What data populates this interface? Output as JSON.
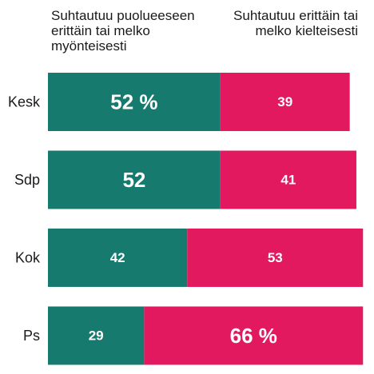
{
  "legend": {
    "positive": "Suhtautuu puolueeseen erittäin tai melko myönteisesti",
    "negative": "Suhtautuu erittäin tai melko kielteisesti"
  },
  "colors": {
    "positive": "#177a6e",
    "negative": "#e2195e"
  },
  "chart_data": {
    "type": "bar",
    "orientation": "horizontal",
    "stacked": true,
    "categories": [
      "Kesk",
      "Sdp",
      "Kok",
      "Ps"
    ],
    "series": [
      {
        "name": "Suhtautuu puolueeseen erittäin tai melko myönteisesti",
        "values": [
          52,
          52,
          42,
          29
        ]
      },
      {
        "name": "Suhtautuu erittäin tai melko kielteisesti",
        "values": [
          39,
          41,
          53,
          66
        ]
      }
    ],
    "data_labels": {
      "positive": [
        "52 %",
        "52",
        "42",
        "29"
      ],
      "negative": [
        "39",
        "41",
        "53",
        "66 %"
      ]
    },
    "emphasized": {
      "positive": [
        true,
        true,
        false,
        false
      ],
      "negative": [
        false,
        false,
        false,
        true
      ]
    },
    "xlim": [
      0,
      100
    ],
    "title": "",
    "xlabel": "",
    "ylabel": "",
    "grid": false,
    "legend_position": "top"
  }
}
